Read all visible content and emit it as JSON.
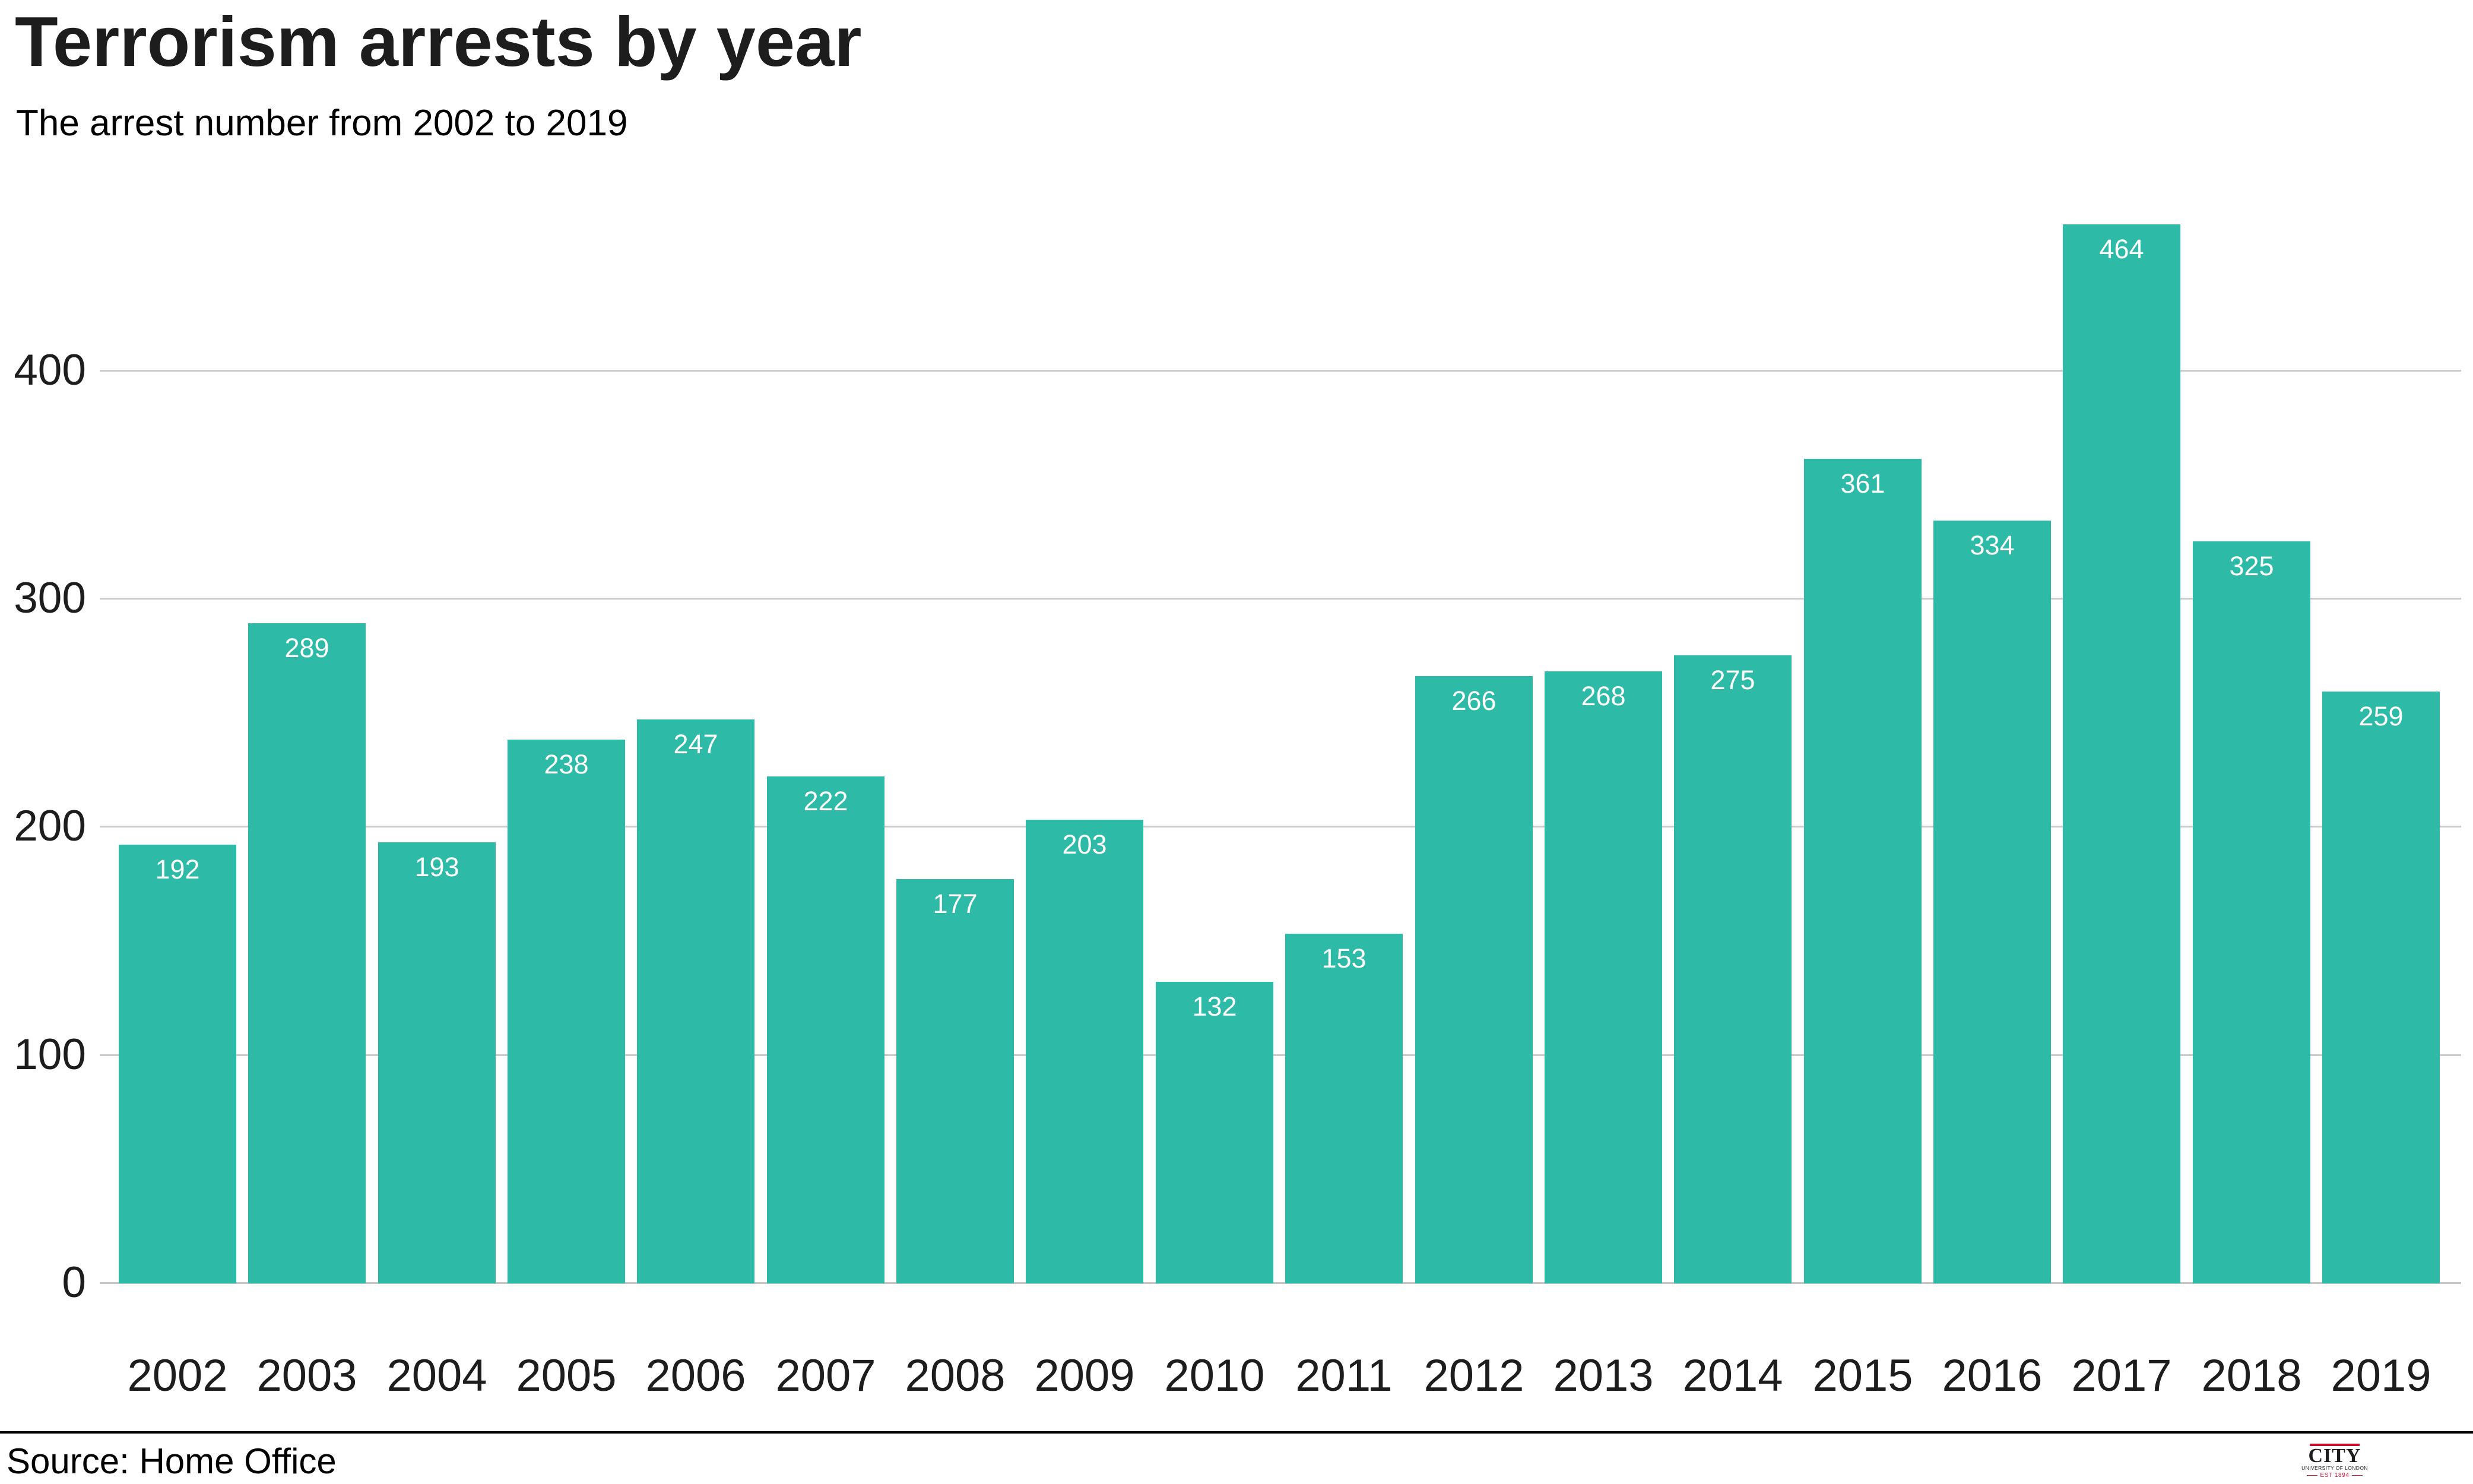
{
  "header": {
    "title": "Terrorism arrests by year",
    "subtitle": "The arrest number from 2002 to 2019"
  },
  "chart_data": {
    "type": "bar",
    "title": "Terrorism arrests by year",
    "subtitle": "The arrest number from 2002 to 2019",
    "categories": [
      "2002",
      "2003",
      "2004",
      "2005",
      "2006",
      "2007",
      "2008",
      "2009",
      "2010",
      "2011",
      "2012",
      "2013",
      "2014",
      "2015",
      "2016",
      "2017",
      "2018",
      "2019"
    ],
    "values": [
      192,
      289,
      193,
      238,
      247,
      222,
      177,
      203,
      132,
      153,
      266,
      268,
      275,
      361,
      334,
      464,
      325,
      259
    ],
    "xlabel": "",
    "ylabel": "",
    "ylim": [
      0,
      480
    ],
    "yticks": [
      0,
      100,
      200,
      300,
      400
    ],
    "grid": "horizontal",
    "legend": "none",
    "bar_color": "#2dbba8",
    "value_label_color": "#ffffff",
    "gridline_color": "#cbcbcb",
    "axis_text_color": "#1d1d1d"
  },
  "footer": {
    "source": "Source: Home Office",
    "logo": {
      "line1": "CITY",
      "line2": "UNIVERSITY OF LONDON",
      "line3": "EST 1894",
      "accent_color": "#c8102e"
    }
  }
}
